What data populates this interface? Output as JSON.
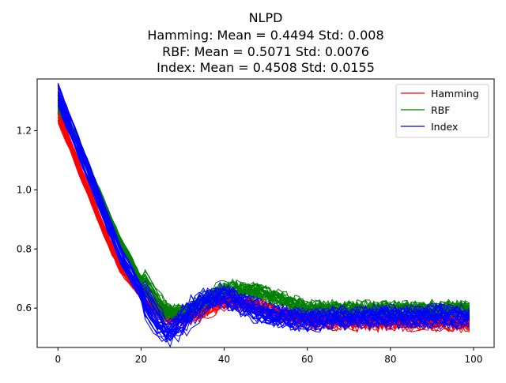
{
  "chart_data": {
    "type": "line",
    "title": "NLPD",
    "subtitle_lines": [
      "Hamming: Mean = 0.4494 Std: 0.008",
      "RBF: Mean = 0.5071 Std: 0.0076",
      "Index: Mean = 0.4508 Std: 0.0155"
    ],
    "xlabel": "",
    "ylabel": "",
    "xlim": [
      -5,
      104.95
    ],
    "ylim": [
      0.467,
      1.375
    ],
    "xticks": [
      0,
      20,
      40,
      60,
      80,
      100
    ],
    "yticks": [
      0.6,
      0.8,
      1.0,
      1.2
    ],
    "x_range": [
      0,
      99
    ],
    "runs_per_series": 30,
    "legend_position": "top-right",
    "grid": false,
    "series": [
      {
        "name": "Hamming",
        "color": "#ff0000",
        "mean_curve": [
          [
            0,
            1.255
          ],
          [
            5,
            1.08
          ],
          [
            10,
            0.9
          ],
          [
            15,
            0.74
          ],
          [
            20,
            0.65
          ],
          [
            25,
            0.575
          ],
          [
            30,
            0.565
          ],
          [
            35,
            0.595
          ],
          [
            40,
            0.63
          ],
          [
            45,
            0.615
          ],
          [
            50,
            0.595
          ],
          [
            55,
            0.575
          ],
          [
            60,
            0.56
          ],
          [
            70,
            0.555
          ],
          [
            80,
            0.555
          ],
          [
            90,
            0.555
          ],
          [
            99,
            0.55
          ]
        ],
        "spread": 0.025
      },
      {
        "name": "RBF",
        "color": "#008000",
        "mean_curve": [
          [
            0,
            1.29
          ],
          [
            5,
            1.16
          ],
          [
            10,
            0.99
          ],
          [
            15,
            0.83
          ],
          [
            20,
            0.7
          ],
          [
            25,
            0.59
          ],
          [
            30,
            0.585
          ],
          [
            35,
            0.63
          ],
          [
            40,
            0.67
          ],
          [
            45,
            0.665
          ],
          [
            50,
            0.65
          ],
          [
            55,
            0.625
          ],
          [
            60,
            0.605
          ],
          [
            70,
            0.6
          ],
          [
            80,
            0.6
          ],
          [
            90,
            0.6
          ],
          [
            99,
            0.605
          ]
        ],
        "spread": 0.02
      },
      {
        "name": "Index",
        "color": "#0000ff",
        "mean_curve": [
          [
            0,
            1.32
          ],
          [
            5,
            1.14
          ],
          [
            10,
            0.96
          ],
          [
            15,
            0.78
          ],
          [
            20,
            0.65
          ],
          [
            25,
            0.53
          ],
          [
            27,
            0.51
          ],
          [
            30,
            0.55
          ],
          [
            35,
            0.62
          ],
          [
            40,
            0.645
          ],
          [
            45,
            0.61
          ],
          [
            50,
            0.58
          ],
          [
            55,
            0.565
          ],
          [
            60,
            0.56
          ],
          [
            70,
            0.565
          ],
          [
            80,
            0.57
          ],
          [
            90,
            0.57
          ],
          [
            99,
            0.57
          ]
        ],
        "spread": 0.04
      }
    ]
  }
}
